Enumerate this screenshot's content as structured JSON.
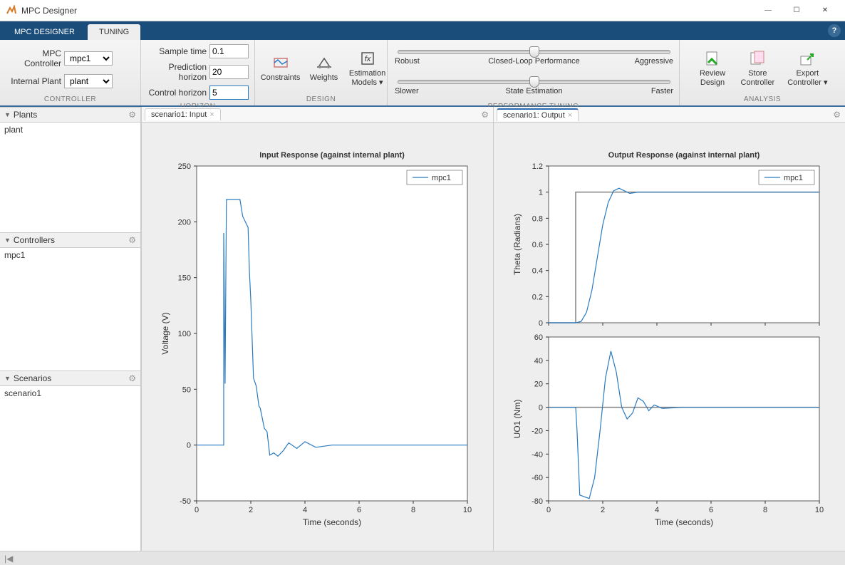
{
  "window": {
    "title": "MPC Designer"
  },
  "tabs": {
    "designer": "MPC DESIGNER",
    "tuning": "TUNING"
  },
  "toolstrip": {
    "controller": {
      "mpc_label": "MPC Controller",
      "mpc_value": "mpc1",
      "plant_label": "Internal Plant",
      "plant_value": "plant",
      "section": "CONTROLLER"
    },
    "horizon": {
      "sample_label": "Sample time",
      "sample_value": "0.1",
      "pred_label": "Prediction horizon",
      "pred_value": "20",
      "ctrl_label": "Control horizon",
      "ctrl_value": "5",
      "section": "HORIZON"
    },
    "design": {
      "constraints": "Constraints",
      "weights": "Weights",
      "estmodels": "Estimation\nModels ▾",
      "section": "DESIGN"
    },
    "perf": {
      "s1_left": "Robust",
      "s1_mid": "Closed-Loop Performance",
      "s1_right": "Aggressive",
      "s2_left": "Slower",
      "s2_mid": "State Estimation",
      "s2_right": "Faster",
      "section": "PERFORMANCE TUNING",
      "slider1_pos": 0.5,
      "slider2_pos": 0.5
    },
    "analysis": {
      "review": "Review\nDesign",
      "store": "Store\nController",
      "export": "Export\nController ▾",
      "section": "ANALYSIS"
    }
  },
  "panels": {
    "plants": {
      "title": "Plants",
      "item": "plant"
    },
    "controllers": {
      "title": "Controllers",
      "item": "mpc1"
    },
    "scenarios": {
      "title": "Scenarios",
      "item": "scenario1"
    }
  },
  "plotTabs": {
    "input": "scenario1: Input",
    "output": "scenario1: Output"
  },
  "charts": {
    "colors": {
      "line": "#2a7ac0",
      "ref": "#808080",
      "axis": "#333333",
      "grid": "#eeeeee",
      "bg": "#ffffff"
    },
    "input": {
      "title": "Input Response (against internal plant)",
      "xlabel": "Time (seconds)",
      "ylabel": "Voltage (V)",
      "xlim": [
        0,
        10
      ],
      "xticks": [
        0,
        2,
        4,
        6,
        8,
        10
      ],
      "ylim": [
        -50,
        250
      ],
      "yticks": [
        -50,
        0,
        50,
        100,
        150,
        200,
        250
      ],
      "legend": "mpc1",
      "series": [
        [
          0,
          0
        ],
        [
          1,
          0
        ],
        [
          1,
          190
        ],
        [
          1.05,
          55
        ],
        [
          1.1,
          220
        ],
        [
          1.6,
          220
        ],
        [
          1.7,
          205
        ],
        [
          1.8,
          200
        ],
        [
          1.9,
          195
        ],
        [
          1.95,
          155
        ],
        [
          2,
          130
        ],
        [
          2.05,
          95
        ],
        [
          2.1,
          60
        ],
        [
          2.2,
          53
        ],
        [
          2.3,
          35
        ],
        [
          2.35,
          33
        ],
        [
          2.5,
          15
        ],
        [
          2.6,
          12
        ],
        [
          2.7,
          -9
        ],
        [
          2.85,
          -7
        ],
        [
          3,
          -10
        ],
        [
          3.2,
          -5
        ],
        [
          3.4,
          2
        ],
        [
          3.7,
          -3
        ],
        [
          4,
          3
        ],
        [
          4.4,
          -2
        ],
        [
          5,
          0
        ],
        [
          10,
          0
        ]
      ]
    },
    "output1": {
      "title": "Output Response (against internal plant)",
      "xlabel": "",
      "ylabel": "Theta (Radians)",
      "xlim": [
        0,
        10
      ],
      "xticks": [
        0,
        2,
        4,
        6,
        8,
        10
      ],
      "show_xtick_labels": false,
      "ylim": [
        0,
        1.2
      ],
      "yticks": [
        0,
        0.2,
        0.4,
        0.6,
        0.8,
        1,
        1.2
      ],
      "legend": "mpc1",
      "ref": [
        [
          0,
          0
        ],
        [
          1,
          0
        ],
        [
          1,
          1
        ],
        [
          10,
          1
        ]
      ],
      "series": [
        [
          0,
          0
        ],
        [
          1,
          0
        ],
        [
          1.2,
          0.01
        ],
        [
          1.4,
          0.08
        ],
        [
          1.6,
          0.25
        ],
        [
          1.8,
          0.5
        ],
        [
          2,
          0.75
        ],
        [
          2.2,
          0.92
        ],
        [
          2.4,
          1.01
        ],
        [
          2.6,
          1.03
        ],
        [
          2.8,
          1.01
        ],
        [
          3,
          0.99
        ],
        [
          3.3,
          1.0
        ],
        [
          4,
          1.0
        ],
        [
          10,
          1.0
        ]
      ]
    },
    "output2": {
      "xlabel": "Time (seconds)",
      "ylabel": "UO1 (Nm)",
      "xlim": [
        0,
        10
      ],
      "xticks": [
        0,
        2,
        4,
        6,
        8,
        10
      ],
      "ylim": [
        -80,
        60
      ],
      "yticks": [
        -80,
        -60,
        -40,
        -20,
        0,
        20,
        40,
        60
      ],
      "ref": [
        [
          0,
          0
        ],
        [
          10,
          0
        ]
      ],
      "series": [
        [
          0,
          0
        ],
        [
          1,
          0
        ],
        [
          1.05,
          -20
        ],
        [
          1.15,
          -75
        ],
        [
          1.5,
          -78
        ],
        [
          1.7,
          -60
        ],
        [
          1.9,
          -20
        ],
        [
          2.1,
          25
        ],
        [
          2.3,
          48
        ],
        [
          2.5,
          30
        ],
        [
          2.7,
          0
        ],
        [
          2.9,
          -10
        ],
        [
          3.1,
          -5
        ],
        [
          3.3,
          8
        ],
        [
          3.5,
          5
        ],
        [
          3.7,
          -3
        ],
        [
          3.9,
          2
        ],
        [
          4.2,
          -1
        ],
        [
          5,
          0
        ],
        [
          10,
          0
        ]
      ]
    }
  }
}
